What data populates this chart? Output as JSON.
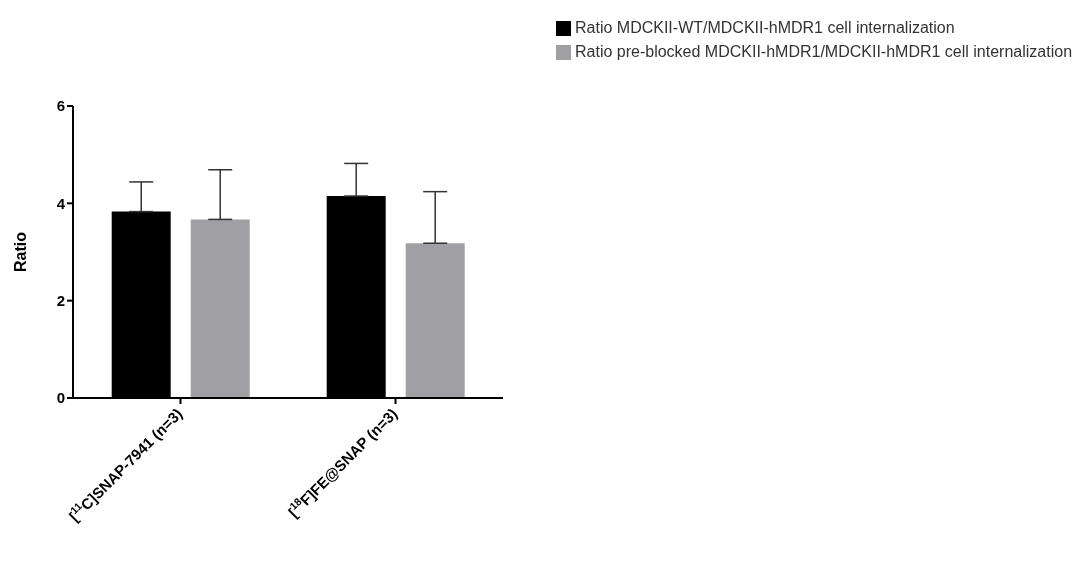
{
  "chart_data": {
    "type": "bar",
    "ylabel": "Ratio",
    "categories": [
      "[$^{11}$C]SNAP-7941 (n=3)",
      "[$^{18}$F]FE@SNAP (n=3)"
    ],
    "series": [
      {
        "name": "Ratio MDCKII-WT/MDCKII-hMDR1 cell internalization",
        "color": "#000000",
        "values": [
          3.83,
          4.15
        ],
        "errors": [
          [
            3.83,
            4.44
          ],
          [
            4.15,
            4.82
          ]
        ]
      },
      {
        "name": "Ratio pre-blocked MDCKII-hMDR1/MDCKII-hMDR1 cell internalization",
        "color": "#a0a0a4",
        "values": [
          3.67,
          3.18
        ],
        "errors": [
          [
            3.67,
            4.69
          ],
          [
            3.18,
            4.24
          ]
        ]
      }
    ],
    "ylim": [
      0,
      6
    ],
    "yticks": [
      0,
      2,
      4,
      6
    ],
    "grid": false,
    "legend": "top right"
  }
}
